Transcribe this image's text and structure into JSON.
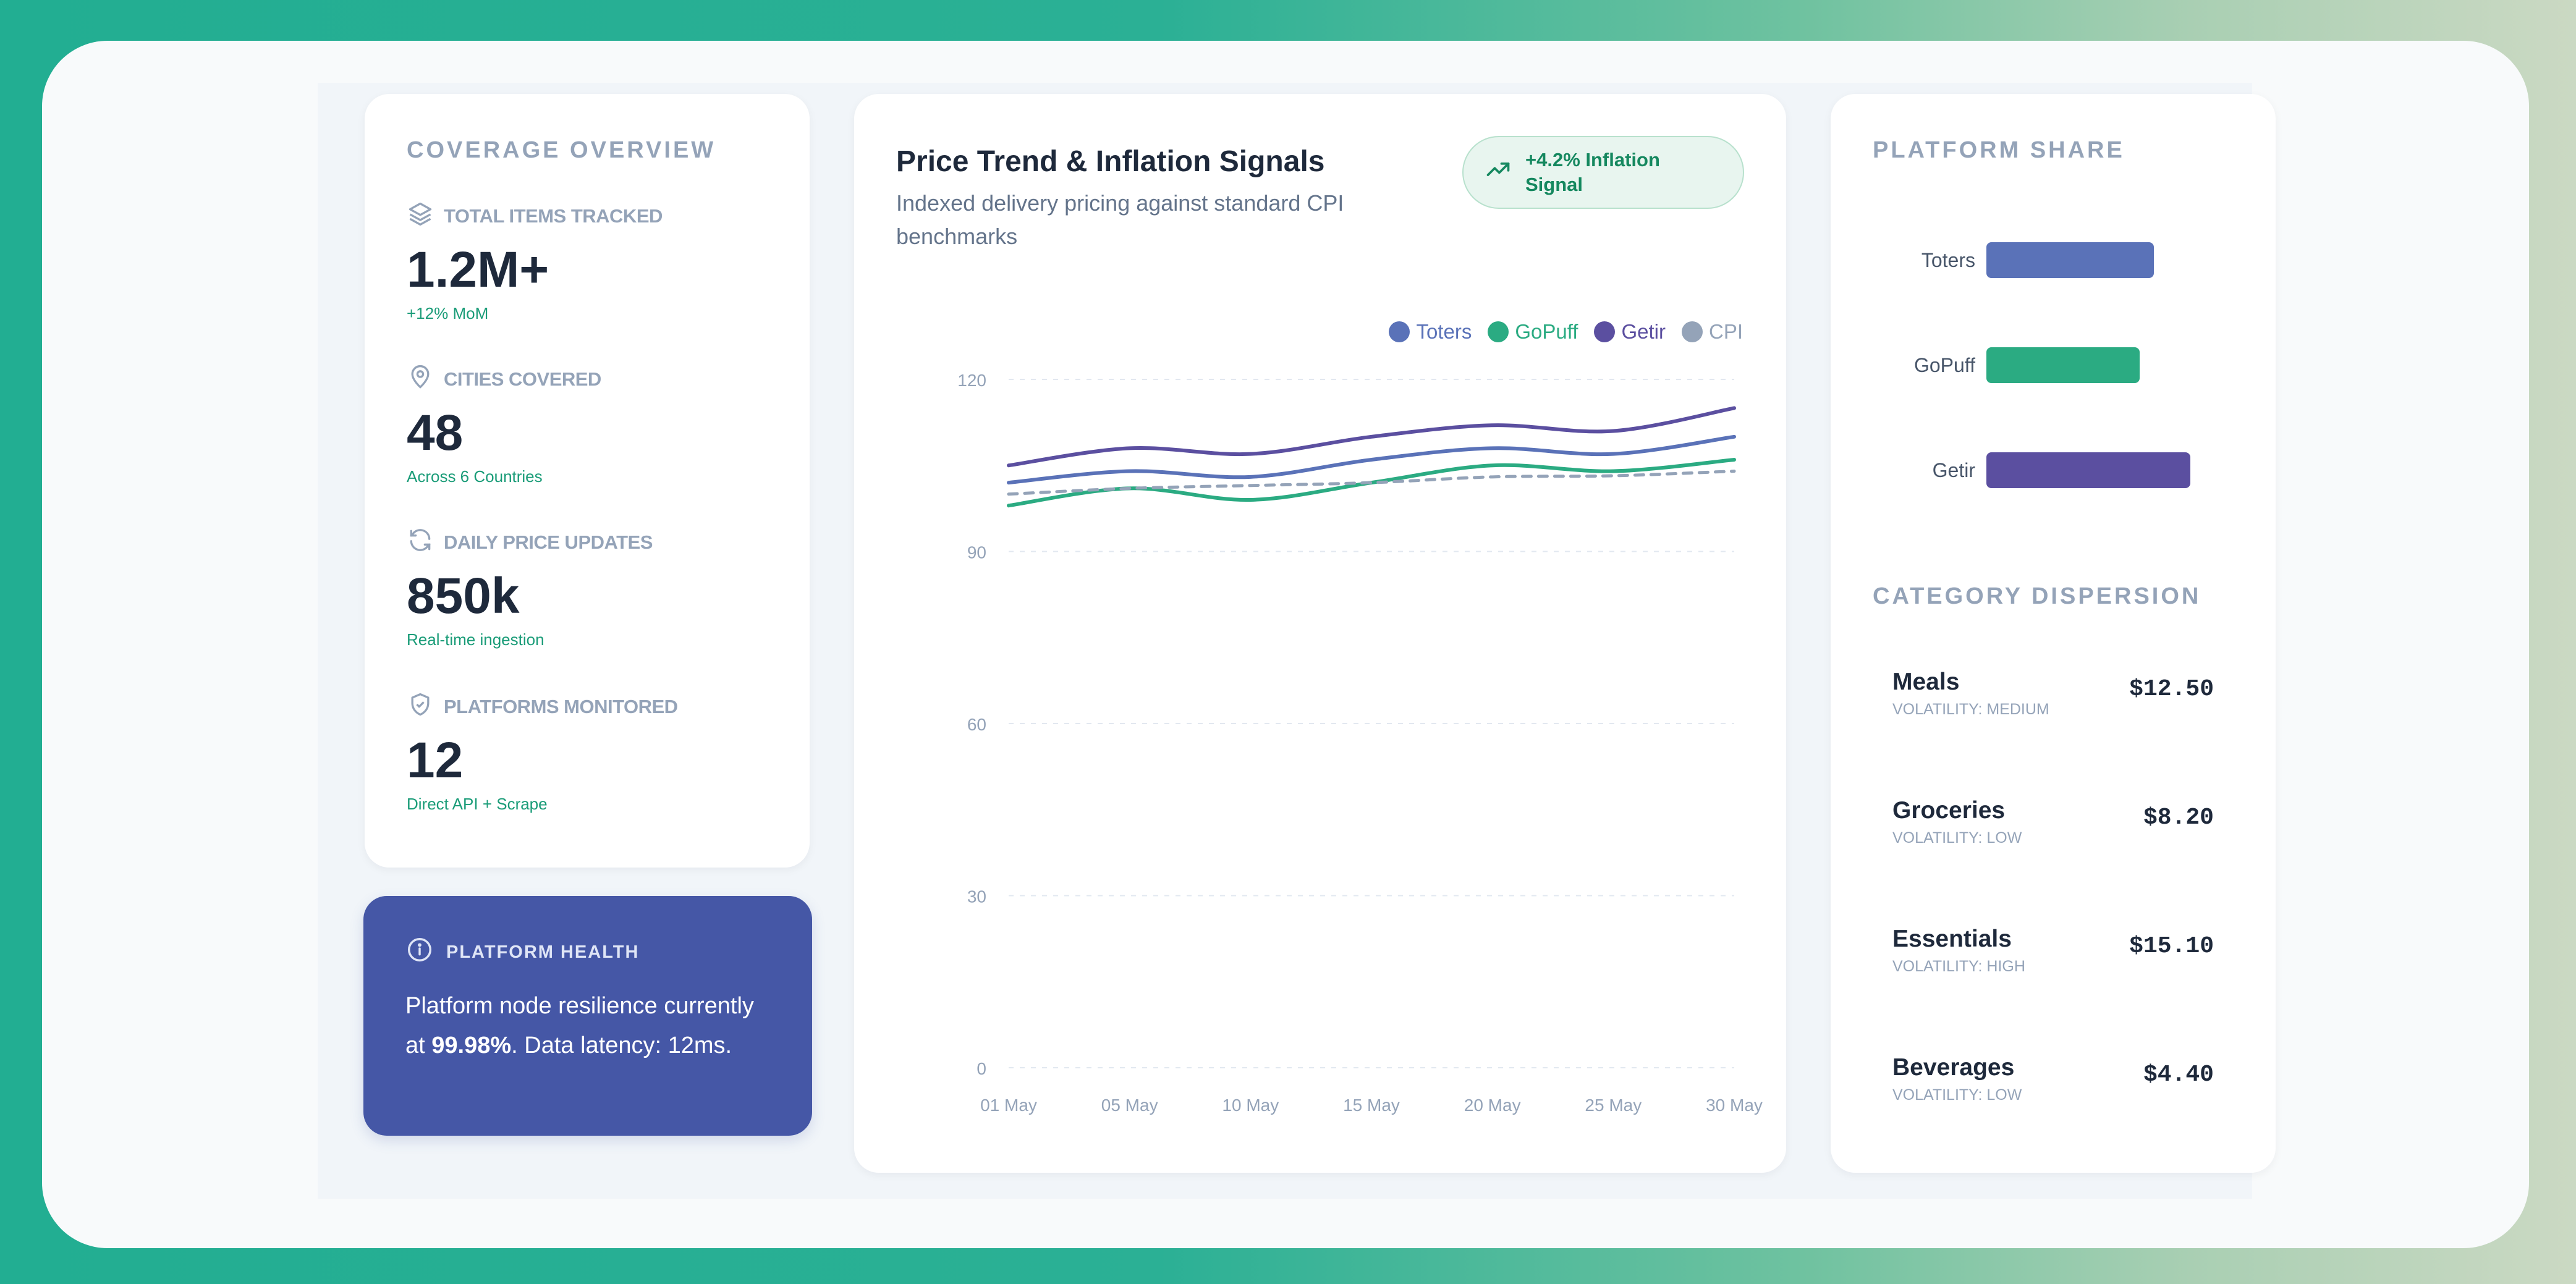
{
  "coverage": {
    "title": "COVERAGE OVERVIEW",
    "metrics": [
      {
        "label": "TOTAL ITEMS TRACKED",
        "value": "1.2M+",
        "sub": "+12% MoM",
        "icon": "layers-icon"
      },
      {
        "label": "CITIES COVERED",
        "value": "48",
        "sub": "Across 6 Countries",
        "icon": "map-pin-icon"
      },
      {
        "label": "DAILY PRICE UPDATES",
        "value": "850k",
        "sub": "Real-time ingestion",
        "icon": "refresh-icon"
      },
      {
        "label": "PLATFORMS MONITORED",
        "value": "12",
        "sub": "Direct API + Scrape",
        "icon": "shield-check-icon"
      }
    ]
  },
  "health": {
    "title": "PLATFORM HEALTH",
    "text_before": "Platform node resilience currently at ",
    "highlight": "99.98%",
    "text_after": ". Data latency: 12ms.",
    "icon": "info-icon"
  },
  "chart_card": {
    "title": "Price Trend & Inflation Signals",
    "subtitle": "Indexed delivery pricing against standard CPI benchmarks",
    "badge": "+4.2% Inflation Signal",
    "badge_icon": "trending-up-icon"
  },
  "chart_data": {
    "type": "line",
    "x": [
      "01 May",
      "05 May",
      "10 May",
      "15 May",
      "20 May",
      "25 May",
      "30 May"
    ],
    "ylim": [
      0,
      120
    ],
    "yticks": [
      0,
      30,
      60,
      90,
      120
    ],
    "grid": true,
    "legend_position": "top-right",
    "series": [
      {
        "name": "Toters",
        "color": "#5a72b8",
        "dashed": false,
        "values": [
          102,
          104,
          103,
          106,
          108,
          107,
          110
        ]
      },
      {
        "name": "GoPuff",
        "color": "#2bab82",
        "dashed": false,
        "values": [
          98,
          101,
          99,
          102,
          105,
          104,
          106
        ]
      },
      {
        "name": "Getir",
        "color": "#5b4fa0",
        "dashed": false,
        "values": [
          105,
          108,
          107,
          110,
          112,
          111,
          115
        ]
      },
      {
        "name": "CPI",
        "color": "#94a3b8",
        "dashed": true,
        "values": [
          100,
          101,
          101.5,
          102,
          103,
          103.2,
          104
        ]
      }
    ]
  },
  "platform_share": {
    "title": "PLATFORM SHARE",
    "items": [
      {
        "label": "Toters",
        "value": 0.82,
        "color": "#5a72b8"
      },
      {
        "label": "GoPuff",
        "value": 0.75,
        "color": "#2bab82"
      },
      {
        "label": "Getir",
        "value": 1.0,
        "color": "#5b4fa0"
      }
    ]
  },
  "dispersion": {
    "title": "CATEGORY DISPERSION",
    "items": [
      {
        "name": "Meals",
        "volatility": "VOLATILITY: MEDIUM",
        "price": "$12.50"
      },
      {
        "name": "Groceries",
        "volatility": "VOLATILITY: LOW",
        "price": "$8.20"
      },
      {
        "name": "Essentials",
        "volatility": "VOLATILITY: HIGH",
        "price": "$15.10"
      },
      {
        "name": "Beverages",
        "volatility": "VOLATILITY: LOW",
        "price": "$4.40"
      }
    ]
  }
}
